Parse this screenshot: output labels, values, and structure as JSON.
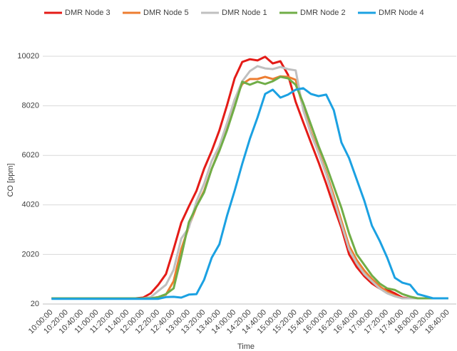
{
  "chart_data": {
    "type": "line",
    "x_label": "Time",
    "y_label": "CO [ppm]",
    "categories": [
      "10:00:00",
      null,
      "10:20:00",
      null,
      "10:40:00",
      null,
      "11:00:00",
      null,
      "11:20:00",
      null,
      "11:40:00",
      null,
      "12:00:00",
      null,
      "12:20:00",
      null,
      "12:40:00",
      null,
      "13:00:00",
      null,
      "13:20:00",
      null,
      "13:40:00",
      null,
      "14:00:00",
      null,
      "14:20:00",
      null,
      "14:40:00",
      null,
      "15:00:00",
      null,
      "15:20:00",
      null,
      "15:40:00",
      null,
      "16:00:00",
      null,
      "16:20:00",
      null,
      "16:40:00",
      null,
      "17:00:00",
      null,
      "17:20:00",
      null,
      "17:40:00",
      null,
      "18:00:00",
      null,
      "18:20:00",
      null,
      "18:40:00"
    ],
    "ylim": [
      20,
      10020
    ],
    "yticks": [
      20,
      2020,
      4020,
      6020,
      8020,
      10020
    ],
    "grid": true,
    "legend": "top",
    "series": [
      {
        "name": "DMR Node 3",
        "color": "#e41b17",
        "values": [
          250,
          250,
          250,
          250,
          250,
          250,
          250,
          250,
          250,
          250,
          250,
          250,
          280,
          450,
          800,
          1230,
          2230,
          3300,
          3960,
          4590,
          5480,
          6200,
          7030,
          8040,
          9130,
          9790,
          9900,
          9850,
          10000,
          9730,
          9820,
          9270,
          8180,
          7350,
          6540,
          5740,
          4880,
          3960,
          3090,
          2030,
          1510,
          1140,
          850,
          650,
          590,
          450,
          280,
          250,
          250,
          250,
          250,
          250,
          250
        ]
      },
      {
        "name": "DMR Node 5",
        "color": "#ed7d31",
        "values": [
          250,
          250,
          250,
          250,
          250,
          250,
          250,
          250,
          250,
          250,
          250,
          250,
          250,
          250,
          300,
          400,
          940,
          2230,
          3150,
          3960,
          4590,
          5480,
          6250,
          7120,
          8270,
          8900,
          9100,
          9100,
          9190,
          9100,
          9210,
          9190,
          9070,
          7920,
          6970,
          6170,
          5340,
          4390,
          3380,
          2370,
          1800,
          1370,
          1030,
          740,
          510,
          360,
          250,
          250,
          250,
          250,
          250,
          250,
          250
        ]
      },
      {
        "name": "DMR Node 1",
        "color": "#c0c0c0",
        "values": [
          250,
          250,
          250,
          250,
          250,
          250,
          250,
          250,
          250,
          250,
          250,
          250,
          250,
          300,
          550,
          800,
          1400,
          2660,
          3100,
          4160,
          4880,
          5800,
          6400,
          7320,
          8270,
          9010,
          9420,
          9620,
          9530,
          9500,
          9590,
          9500,
          9450,
          7840,
          6890,
          6110,
          5250,
          4240,
          3240,
          2230,
          1660,
          1230,
          940,
          650,
          450,
          330,
          250,
          250,
          250,
          250,
          250,
          250,
          250
        ]
      },
      {
        "name": "DMR Node 2",
        "color": "#70ad47",
        "values": [
          250,
          250,
          250,
          250,
          250,
          250,
          250,
          250,
          250,
          250,
          250,
          250,
          250,
          250,
          300,
          420,
          650,
          1940,
          3320,
          3960,
          4530,
          5480,
          6200,
          7030,
          7980,
          8990,
          8870,
          8990,
          8900,
          9010,
          9190,
          9130,
          8870,
          8120,
          7260,
          6400,
          5620,
          4760,
          3900,
          2870,
          2030,
          1600,
          1170,
          850,
          650,
          590,
          420,
          320,
          250,
          250,
          250,
          250,
          250
        ]
      },
      {
        "name": "DMR Node 4",
        "color": "#1ba1e2",
        "values": [
          230,
          230,
          230,
          230,
          230,
          230,
          230,
          230,
          230,
          230,
          230,
          230,
          230,
          230,
          230,
          300,
          310,
          280,
          400,
          420,
          1000,
          1890,
          2430,
          3580,
          4590,
          5680,
          6690,
          7550,
          8500,
          8670,
          8350,
          8470,
          8670,
          8730,
          8500,
          8410,
          8470,
          7840,
          6540,
          5910,
          5050,
          4190,
          3180,
          2580,
          1890,
          1080,
          880,
          800,
          420,
          340,
          250,
          250,
          250
        ]
      }
    ]
  }
}
